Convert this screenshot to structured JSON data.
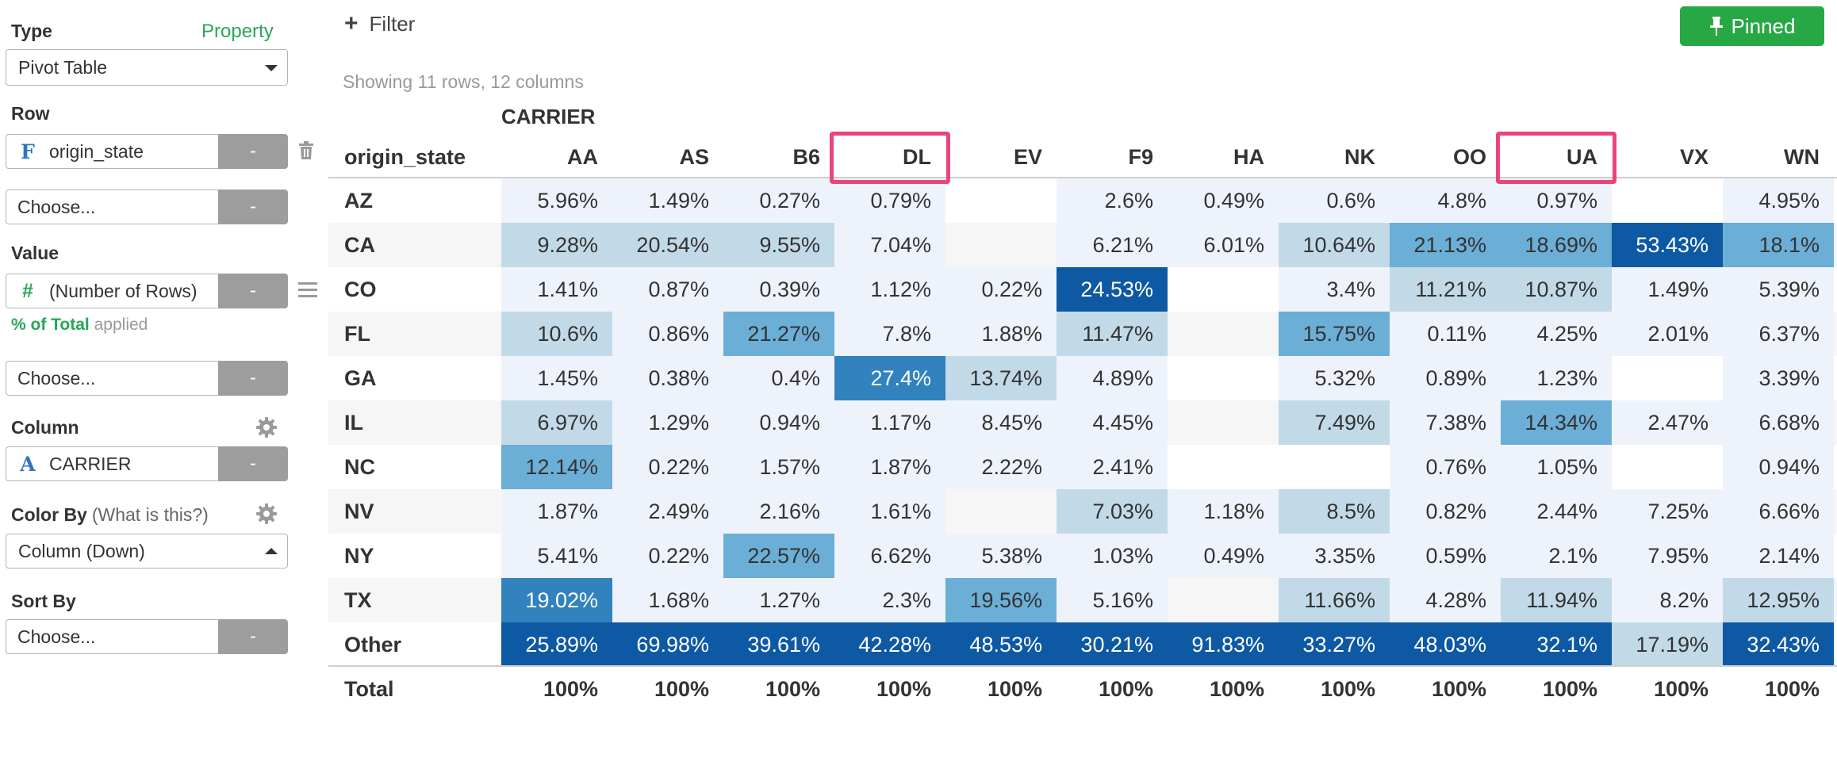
{
  "panel": {
    "type": {
      "label": "Type",
      "property_link": "Property",
      "value": "Pivot Table"
    },
    "row": {
      "label": "Row",
      "field": "origin_state",
      "field_icon": "F",
      "remove_label": "-",
      "choose_label": "Choose...",
      "choose_remove": "-"
    },
    "value": {
      "label": "Value",
      "field": "(Number of Rows)",
      "field_icon": "#",
      "remove_label": "-",
      "applied_strong": "% of Total",
      "applied_rest": "applied",
      "choose_label": "Choose...",
      "choose_remove": "-"
    },
    "column": {
      "label": "Column",
      "field": "CARRIER",
      "field_icon": "A",
      "remove_label": "-"
    },
    "color_by": {
      "label": "Color By",
      "help_link": "(What is this?)",
      "value": "Column (Down)"
    },
    "sort_by": {
      "label": "Sort By",
      "choose_label": "Choose...",
      "remove_label": "-"
    }
  },
  "toolbar": {
    "filter_icon": "+",
    "filter_label": "Filter",
    "pinned_label": "Pinned"
  },
  "summary": "Showing 11 rows, 12 columns",
  "pivot": {
    "column_group_label": "CARRIER",
    "row_header": "origin_state",
    "columns": [
      "AA",
      "AS",
      "B6",
      "DL",
      "EV",
      "F9",
      "HA",
      "NK",
      "OO",
      "UA",
      "VX",
      "WN"
    ],
    "highlighted_columns": [
      "DL",
      "UA"
    ],
    "rows": [
      {
        "label": "AZ",
        "values": [
          "5.96%",
          "1.49%",
          "0.27%",
          "0.79%",
          "",
          "2.6%",
          "0.49%",
          "0.6%",
          "4.8%",
          "0.97%",
          "",
          "4.95%"
        ],
        "levels": [
          1,
          1,
          1,
          1,
          0,
          1,
          1,
          1,
          1,
          1,
          0,
          1
        ]
      },
      {
        "label": "CA",
        "values": [
          "9.28%",
          "20.54%",
          "9.55%",
          "7.04%",
          "",
          "6.21%",
          "6.01%",
          "10.64%",
          "21.13%",
          "18.69%",
          "53.43%",
          "18.1%"
        ],
        "levels": [
          2,
          2,
          2,
          1,
          0,
          1,
          1,
          2,
          3,
          3,
          5,
          3
        ]
      },
      {
        "label": "CO",
        "values": [
          "1.41%",
          "0.87%",
          "0.39%",
          "1.12%",
          "0.22%",
          "24.53%",
          "",
          "3.4%",
          "11.21%",
          "10.87%",
          "1.49%",
          "5.39%"
        ],
        "levels": [
          1,
          1,
          1,
          1,
          1,
          5,
          0,
          1,
          2,
          2,
          1,
          1
        ]
      },
      {
        "label": "FL",
        "values": [
          "10.6%",
          "0.86%",
          "21.27%",
          "7.8%",
          "1.88%",
          "11.47%",
          "",
          "15.75%",
          "0.11%",
          "4.25%",
          "2.01%",
          "6.37%"
        ],
        "levels": [
          2,
          1,
          3,
          1,
          1,
          2,
          0,
          3,
          1,
          1,
          1,
          1
        ]
      },
      {
        "label": "GA",
        "values": [
          "1.45%",
          "0.38%",
          "0.4%",
          "27.4%",
          "13.74%",
          "4.89%",
          "",
          "5.32%",
          "0.89%",
          "1.23%",
          "",
          "3.39%"
        ],
        "levels": [
          1,
          1,
          1,
          4,
          2,
          1,
          0,
          1,
          1,
          1,
          0,
          1
        ]
      },
      {
        "label": "IL",
        "values": [
          "6.97%",
          "1.29%",
          "0.94%",
          "1.17%",
          "8.45%",
          "4.45%",
          "",
          "7.49%",
          "7.38%",
          "14.34%",
          "2.47%",
          "6.68%"
        ],
        "levels": [
          2,
          1,
          1,
          1,
          1,
          1,
          0,
          2,
          1,
          3,
          1,
          1
        ]
      },
      {
        "label": "NC",
        "values": [
          "12.14%",
          "0.22%",
          "1.57%",
          "1.87%",
          "2.22%",
          "2.41%",
          "",
          "",
          "0.76%",
          "1.05%",
          "",
          "0.94%"
        ],
        "levels": [
          3,
          1,
          1,
          1,
          1,
          1,
          0,
          0,
          1,
          1,
          0,
          1
        ]
      },
      {
        "label": "NV",
        "values": [
          "1.87%",
          "2.49%",
          "2.16%",
          "1.61%",
          "",
          "7.03%",
          "1.18%",
          "8.5%",
          "0.82%",
          "2.44%",
          "7.25%",
          "6.66%"
        ],
        "levels": [
          1,
          1,
          1,
          1,
          0,
          2,
          1,
          2,
          1,
          1,
          1,
          1
        ]
      },
      {
        "label": "NY",
        "values": [
          "5.41%",
          "0.22%",
          "22.57%",
          "6.62%",
          "5.38%",
          "1.03%",
          "0.49%",
          "3.35%",
          "0.59%",
          "2.1%",
          "7.95%",
          "2.14%"
        ],
        "levels": [
          1,
          1,
          3,
          1,
          1,
          1,
          1,
          1,
          1,
          1,
          1,
          1
        ]
      },
      {
        "label": "TX",
        "values": [
          "19.02%",
          "1.68%",
          "1.27%",
          "2.3%",
          "19.56%",
          "5.16%",
          "",
          "11.66%",
          "4.28%",
          "11.94%",
          "8.2%",
          "12.95%"
        ],
        "levels": [
          4,
          1,
          1,
          1,
          3,
          1,
          0,
          2,
          1,
          2,
          1,
          2
        ]
      },
      {
        "label": "Other",
        "values": [
          "25.89%",
          "69.98%",
          "39.61%",
          "42.28%",
          "48.53%",
          "30.21%",
          "91.83%",
          "33.27%",
          "48.03%",
          "32.1%",
          "17.19%",
          "32.43%"
        ],
        "levels": [
          5,
          5,
          5,
          5,
          5,
          5,
          5,
          5,
          5,
          5,
          2,
          5
        ]
      }
    ],
    "total": {
      "label": "Total",
      "values": [
        "100%",
        "100%",
        "100%",
        "100%",
        "100%",
        "100%",
        "100%",
        "100%",
        "100%",
        "100%",
        "100%",
        "100%"
      ]
    }
  },
  "colors": {
    "accent_green": "#28a745",
    "highlight": "#ea4479",
    "scale": [
      "#ffffff",
      "#eef3fb",
      "#c2d9e8",
      "#6baed6",
      "#3182bd",
      "#0e59a4"
    ]
  }
}
